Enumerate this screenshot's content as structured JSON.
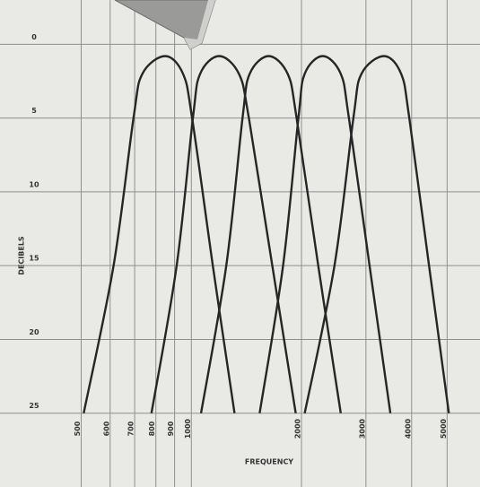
{
  "chart_data": {
    "type": "line",
    "xlabel": "FREQUENCY",
    "ylabel": "DECIBELS",
    "xscale": "log",
    "yinverted": true,
    "grid": true,
    "color": "#262626",
    "xlim": [
      300,
      6150
    ],
    "ylim": [
      -3,
      30
    ],
    "xticks": [
      500,
      600,
      700,
      800,
      900,
      1000,
      2000,
      3000,
      4000,
      5000
    ],
    "yticks": [
      0,
      5,
      10,
      15,
      20,
      25
    ],
    "series": [
      {
        "x": [
          508,
          613,
          695,
          735,
          848,
          949,
          1005,
          1145,
          1312
        ],
        "values": [
          25,
          15,
          5,
          2,
          0.8,
          2,
          5,
          15,
          25
        ]
      },
      {
        "x": [
          778,
          912,
          1010,
          1057,
          1191,
          1349,
          1436,
          1664,
          1929
        ],
        "values": [
          25,
          15,
          5,
          2,
          0.8,
          2,
          5,
          15,
          25
        ]
      },
      {
        "x": [
          1063,
          1246,
          1380,
          1444,
          1627,
          1833,
          1940,
          2222,
          2561
        ],
        "values": [
          25,
          15,
          5,
          2,
          0.8,
          2,
          5,
          15,
          25
        ]
      },
      {
        "x": [
          1537,
          1781,
          1962,
          2041,
          2286,
          2561,
          2695,
          3070,
          3498
        ],
        "values": [
          25,
          15,
          5,
          2,
          0.8,
          2,
          5,
          15,
          25
        ]
      },
      {
        "x": [
          2041,
          2461,
          2773,
          2917,
          3362,
          3745,
          3941,
          4463,
          5057
        ],
        "values": [
          25,
          15,
          5,
          2,
          0.8,
          2,
          5,
          15,
          25
        ]
      }
    ]
  }
}
